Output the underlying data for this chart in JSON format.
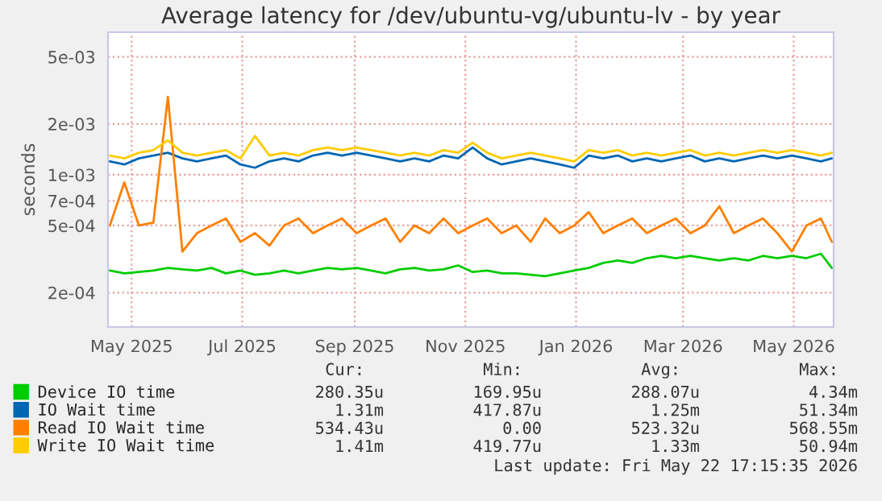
{
  "chart_data": {
    "type": "line",
    "title": "Average latency for /dev/ubuntu-vg/ubuntu-lv - by year",
    "ylabel": "seconds",
    "x": [
      "2025-04-19",
      "2025-04-27",
      "2025-05-05",
      "2025-05-13",
      "2025-05-21",
      "2025-05-29",
      "2025-06-06",
      "2025-06-14",
      "2025-06-22",
      "2025-06-30",
      "2025-07-08",
      "2025-07-16",
      "2025-07-24",
      "2025-08-01",
      "2025-08-09",
      "2025-08-17",
      "2025-08-25",
      "2025-09-02",
      "2025-09-10",
      "2025-09-18",
      "2025-09-26",
      "2025-10-04",
      "2025-10-12",
      "2025-10-20",
      "2025-10-28",
      "2025-11-05",
      "2025-11-13",
      "2025-11-21",
      "2025-11-29",
      "2025-12-07",
      "2025-12-15",
      "2025-12-23",
      "2025-12-31",
      "2026-01-08",
      "2026-01-16",
      "2026-01-24",
      "2026-02-01",
      "2026-02-09",
      "2026-02-17",
      "2026-02-25",
      "2026-03-05",
      "2026-03-13",
      "2026-03-21",
      "2026-03-29",
      "2026-04-06",
      "2026-04-14",
      "2026-04-22",
      "2026-04-30",
      "2026-05-08",
      "2026-05-16",
      "2026-05-22"
    ],
    "series": [
      {
        "name": "Device IO time",
        "color": "#00cc00",
        "values": [
          0.00027,
          0.00026,
          0.000265,
          0.00027,
          0.00028,
          0.000275,
          0.00027,
          0.00028,
          0.00026,
          0.00027,
          0.000255,
          0.00026,
          0.00027,
          0.00026,
          0.00027,
          0.00028,
          0.000275,
          0.00028,
          0.00027,
          0.00026,
          0.000275,
          0.00028,
          0.00027,
          0.000275,
          0.00029,
          0.000265,
          0.00027,
          0.00026,
          0.00026,
          0.000255,
          0.00025,
          0.00026,
          0.00027,
          0.00028,
          0.0003,
          0.00031,
          0.0003,
          0.00032,
          0.00033,
          0.00032,
          0.00033,
          0.00032,
          0.00031,
          0.00032,
          0.00031,
          0.00033,
          0.00032,
          0.00033,
          0.00032,
          0.00034,
          0.00028
        ]
      },
      {
        "name": "IO Wait time",
        "color": "#0066b3",
        "values": [
          0.0012,
          0.00115,
          0.00125,
          0.0013,
          0.00135,
          0.00125,
          0.0012,
          0.00125,
          0.0013,
          0.00115,
          0.0011,
          0.0012,
          0.00125,
          0.0012,
          0.0013,
          0.00135,
          0.0013,
          0.00135,
          0.0013,
          0.00125,
          0.0012,
          0.00125,
          0.0012,
          0.0013,
          0.00125,
          0.00145,
          0.00125,
          0.00115,
          0.0012,
          0.00125,
          0.0012,
          0.00115,
          0.0011,
          0.0013,
          0.00125,
          0.0013,
          0.0012,
          0.00125,
          0.0012,
          0.00125,
          0.0013,
          0.0012,
          0.00125,
          0.0012,
          0.00125,
          0.0013,
          0.00125,
          0.0013,
          0.00125,
          0.0012,
          0.00125
        ]
      },
      {
        "name": "Read IO Wait time",
        "color": "#ff8000",
        "values": [
          0.0005,
          0.0009,
          0.0005,
          0.00052,
          0.0029,
          0.00035,
          0.00045,
          0.0005,
          0.00055,
          0.0004,
          0.00045,
          0.00038,
          0.0005,
          0.00055,
          0.00045,
          0.0005,
          0.00055,
          0.00045,
          0.0005,
          0.00055,
          0.0004,
          0.0005,
          0.00045,
          0.00055,
          0.00045,
          0.0005,
          0.00055,
          0.00045,
          0.0005,
          0.0004,
          0.00055,
          0.00045,
          0.0005,
          0.0006,
          0.00045,
          0.0005,
          0.00055,
          0.00045,
          0.0005,
          0.00055,
          0.00045,
          0.0005,
          0.00065,
          0.00045,
          0.0005,
          0.00055,
          0.00045,
          0.00035,
          0.0005,
          0.00055,
          0.0004
        ]
      },
      {
        "name": "Write IO Wait time",
        "color": "#ffcc00",
        "values": [
          0.0013,
          0.00125,
          0.00135,
          0.0014,
          0.0016,
          0.00135,
          0.0013,
          0.00135,
          0.0014,
          0.00125,
          0.0017,
          0.0013,
          0.00135,
          0.0013,
          0.0014,
          0.00145,
          0.0014,
          0.00145,
          0.0014,
          0.00135,
          0.0013,
          0.00135,
          0.0013,
          0.0014,
          0.00135,
          0.00155,
          0.00135,
          0.00125,
          0.0013,
          0.00135,
          0.0013,
          0.00125,
          0.0012,
          0.0014,
          0.00135,
          0.0014,
          0.0013,
          0.00135,
          0.0013,
          0.00135,
          0.0014,
          0.0013,
          0.00135,
          0.0013,
          0.00135,
          0.0014,
          0.00135,
          0.0014,
          0.00135,
          0.0013,
          0.00135
        ]
      }
    ],
    "log": true,
    "ylim": [
      0.000125,
      0.007
    ],
    "yticks": [
      {
        "value": 0.0002,
        "label": "2e-04"
      },
      {
        "value": 0.0005,
        "label": "5e-04"
      },
      {
        "value": 0.0007,
        "label": "7e-04"
      },
      {
        "value": 0.001,
        "label": "1e-03"
      },
      {
        "value": 0.002,
        "label": "2e-03"
      },
      {
        "value": 0.005,
        "label": "5e-03"
      }
    ],
    "xlim": [
      "2025-04-18",
      "2026-05-23"
    ],
    "xticks": [
      {
        "value": "2025-05-01",
        "label": "May 2025"
      },
      {
        "value": "2025-07-01",
        "label": "Jul 2025"
      },
      {
        "value": "2025-09-01",
        "label": "Sep 2025"
      },
      {
        "value": "2025-11-01",
        "label": "Nov 2025"
      },
      {
        "value": "2026-01-01",
        "label": "Jan 2026"
      },
      {
        "value": "2026-03-01",
        "label": "Mar 2026"
      },
      {
        "value": "2026-05-01",
        "label": "May 2026"
      }
    ],
    "grid": true,
    "legend": "bottom",
    "line_style": "solid",
    "marker": "none",
    "annotations": [
      "Cur:",
      "Min:",
      "Avg:",
      "Max:",
      "280.35u",
      "169.95u",
      "288.07u",
      "4.34m",
      "1.31m",
      "417.87u",
      "1.25m",
      "51.34m",
      "534.43u",
      "0.00",
      "523.32u",
      "568.55m",
      "1.41m",
      "419.77u",
      "1.33m",
      "50.94m",
      "Last update: Fri May 22 17:15:35 2026"
    ]
  }
}
